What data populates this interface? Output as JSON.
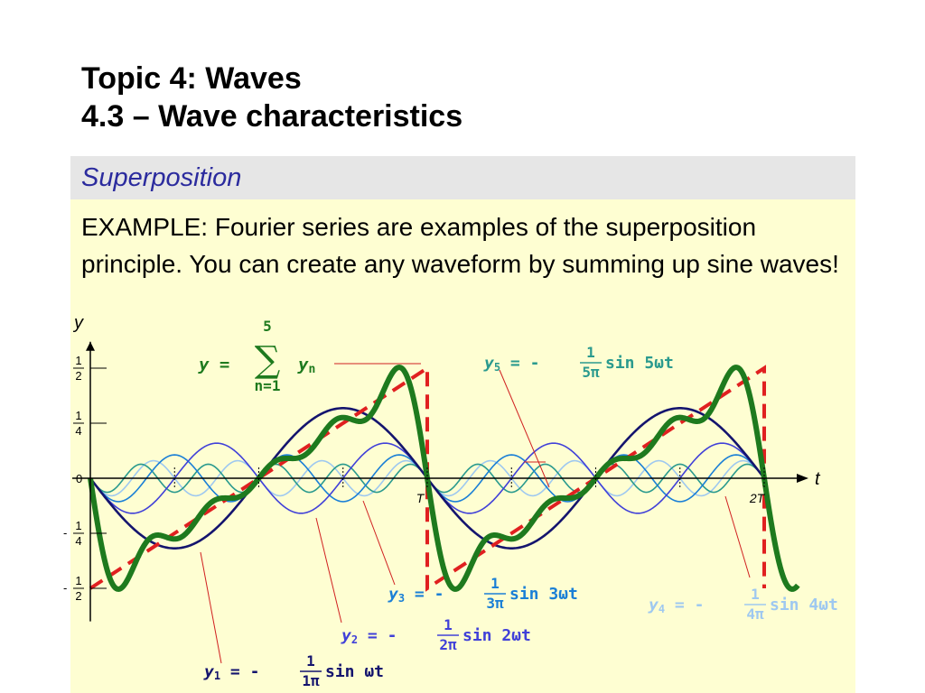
{
  "slide": {
    "title": "Topic 4: Waves",
    "subtitle": "4.3 – Wave characteristics",
    "section": "Superposition",
    "body": "EXAMPLE: Fourier series are examples of the superposition principle. You can create any waveform by summing up sine waves!"
  },
  "chart_data": {
    "type": "line",
    "xlabel": "t",
    "ylabel": "y",
    "x_tick_labels": [
      "T",
      "2T"
    ],
    "y_ticks": [
      {
        "value": 0.5,
        "sign": "",
        "num": "1",
        "den": "2"
      },
      {
        "value": 0.25,
        "sign": "",
        "num": "1",
        "den": "4"
      },
      {
        "value": 0,
        "sign": "",
        "num": "0",
        "den": ""
      },
      {
        "value": -0.25,
        "sign": "-",
        "num": "1",
        "den": "4"
      },
      {
        "value": -0.5,
        "sign": "-",
        "num": "1",
        "den": "2"
      }
    ],
    "x_range_periods": [
      0,
      2.1
    ],
    "y_range": [
      -0.5,
      0.5
    ],
    "grid": false,
    "colors": {
      "y1": "#14146e",
      "y2": "#4040d8",
      "y3": "#1a7fd6",
      "y4": "#9ec8f0",
      "y5": "#2a9a8e",
      "sum": "#1e7a1e",
      "sawtooth": "#e02020"
    },
    "series": [
      {
        "key": "y1",
        "harmonic": 1,
        "amplitude": 0.3183
      },
      {
        "key": "y2",
        "harmonic": 2,
        "amplitude": 0.1592
      },
      {
        "key": "y3",
        "harmonic": 3,
        "amplitude": 0.1061
      },
      {
        "key": "y4",
        "harmonic": 4,
        "amplitude": 0.0796
      },
      {
        "key": "y5",
        "harmonic": 5,
        "amplitude": 0.0637
      },
      {
        "key": "sum",
        "harmonic": 0,
        "amplitude": 0
      }
    ],
    "sawtooth_reference": {
      "period": 1,
      "min": -0.5,
      "max": 0.5
    },
    "labels": {
      "sum": {
        "lhs": "y = ",
        "sigma": "∑",
        "upper": "5",
        "lower": "n=1",
        "term": "y",
        "sub": "n"
      },
      "y1": {
        "var": "y",
        "sub": "1",
        "eq": " = - ",
        "num": "1",
        "den": "1π",
        "fn": "sin ωt"
      },
      "y2": {
        "var": "y",
        "sub": "2",
        "eq": " = - ",
        "num": "1",
        "den": "2π",
        "fn": "sin 2ωt"
      },
      "y3": {
        "var": "y",
        "sub": "3",
        "eq": " = - ",
        "num": "1",
        "den": "3π",
        "fn": "sin 3ωt"
      },
      "y4": {
        "var": "y",
        "sub": "4",
        "eq": " = - ",
        "num": "1",
        "den": "4π",
        "fn": "sin 4ωt"
      },
      "y5": {
        "var": "y",
        "sub": "5",
        "eq": " = - ",
        "num": "1",
        "den": "5π",
        "fn": "sin 5ωt"
      }
    }
  }
}
